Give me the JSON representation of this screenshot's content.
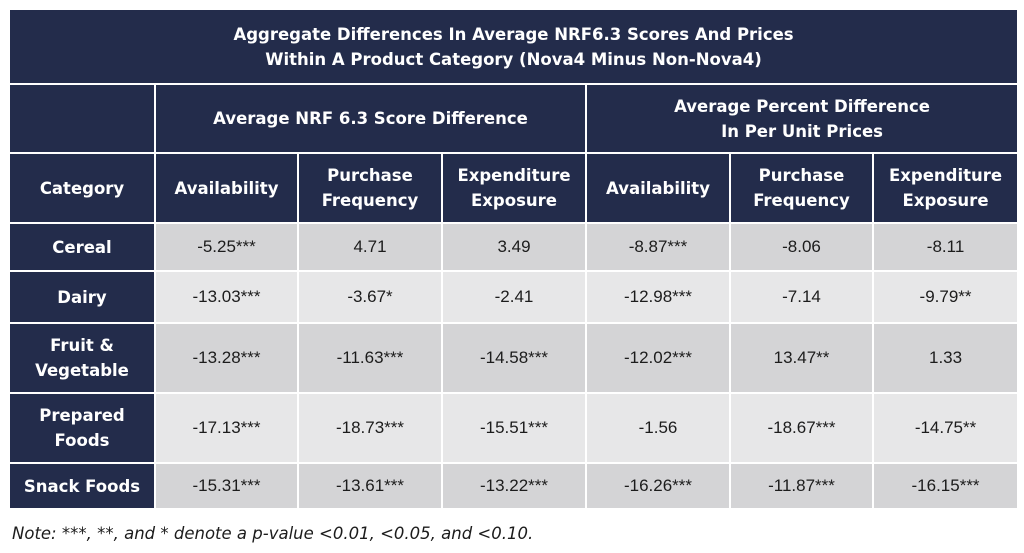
{
  "title": {
    "line1": "Aggregate Differences In Average NRF6.3 Scores And Prices",
    "line2": "Within A Product Category (Nova4 Minus Non-Nova4)"
  },
  "groups": {
    "nrf": "Average NRF 6.3 Score Difference",
    "price_line1": "Average Percent Difference",
    "price_line2": "In Per Unit Prices"
  },
  "columns": {
    "category": "Category",
    "nrf_availability": "Availability",
    "nrf_purchase_line1": "Purchase",
    "nrf_purchase_line2": "Frequency",
    "nrf_expenditure_line1": "Expenditure",
    "nrf_expenditure_line2": "Exposure",
    "price_availability": "Availability",
    "price_purchase_line1": "Purchase",
    "price_purchase_line2": "Frequency",
    "price_expenditure_line1": "Expenditure",
    "price_expenditure_line2": "Exposure"
  },
  "rows": [
    {
      "label_line1": "Cereal",
      "label_line2": "",
      "values": [
        "-5.25***",
        "4.71",
        "3.49",
        "-8.87***",
        "-8.06",
        "-8.11"
      ]
    },
    {
      "label_line1": "Dairy",
      "label_line2": "",
      "values": [
        "-13.03***",
        "-3.67*",
        "-2.41",
        "-12.98***",
        "-7.14",
        "-9.79**"
      ]
    },
    {
      "label_line1": "Fruit &",
      "label_line2": "Vegetable",
      "values": [
        "-13.28***",
        "-11.63***",
        "-14.58***",
        "-12.02***",
        "13.47**",
        "1.33"
      ]
    },
    {
      "label_line1": "Prepared",
      "label_line2": "Foods",
      "values": [
        "-17.13***",
        "-18.73***",
        "-15.51***",
        "-1.56",
        "-18.67***",
        "-14.75**"
      ]
    },
    {
      "label_line1": "Snack Foods",
      "label_line2": "",
      "values": [
        "-15.31***",
        "-13.61***",
        "-13.22***",
        "-16.26***",
        "-11.87***",
        "-16.15***"
      ]
    }
  ],
  "note": "Note: ***, **, and * denote a p-value <0.01, <0.05, and <0.10.",
  "colors": {
    "header_navy": "#232c4b",
    "row_dark": "#d4d4d6",
    "row_light": "#e7e7e8"
  }
}
